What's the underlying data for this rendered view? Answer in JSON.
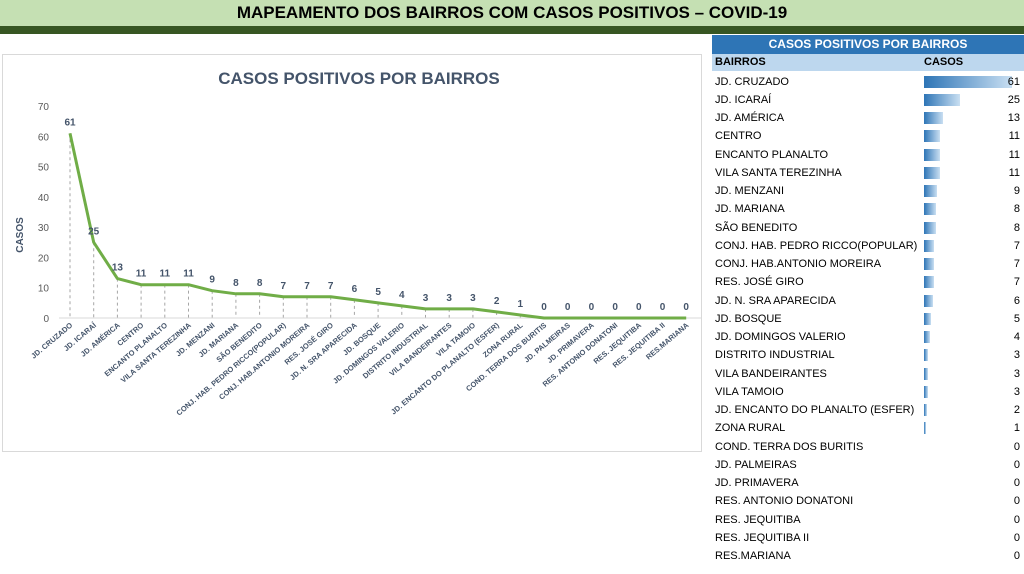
{
  "banner": {
    "title": "MAPEAMENTO DOS BAIRROS COM CASOS POSITIVOS – COVID-19"
  },
  "table": {
    "title": "CASOS POSITIVOS POR BAIRROS",
    "col_name": "BAIRROS",
    "col_value": "CASOS"
  },
  "colors": {
    "line": "#70ad47",
    "axis_text": "#44546a",
    "bar": "#2e75b6"
  },
  "chart_data": {
    "type": "line",
    "title": "CASOS POSITIVOS POR BAIRROS",
    "xlabel": "",
    "ylabel": "CASOS",
    "ylim": [
      0,
      70
    ],
    "yticks": [
      0,
      10,
      20,
      30,
      40,
      50,
      60,
      70
    ],
    "grid": false,
    "legend": "none",
    "data_labels": true,
    "categories": [
      "JD. CRUZADO",
      "JD. ICARAÍ",
      "JD. AMÉRICA",
      "CENTRO",
      "ENCANTO PLANALTO",
      "VILA SANTA TEREZINHA",
      "JD. MENZANI",
      "JD. MARIANA",
      "SÃO BENEDITO",
      "CONJ. HAB. PEDRO RICCO(POPULAR)",
      "CONJ. HAB.ANTONIO MOREIRA",
      "RES. JOSÉ GIRO",
      "JD. N. SRA APARECIDA",
      "JD. BOSQUE",
      "JD. DOMINGOS VALERIO",
      "DISTRITO INDUSTRIAL",
      "VILA BANDEIRANTES",
      "VILA TAMOIO",
      "JD. ENCANTO DO PLANALTO (ESFER)",
      "ZONA RURAL",
      "COND. TERRA DOS BURITIS",
      "JD. PALMEIRAS",
      "JD. PRIMAVERA",
      "RES. ANTONIO DONATONI",
      "RES. JEQUITIBA",
      "RES. JEQUITIBA II",
      "RES.MARIANA"
    ],
    "values": [
      61,
      25,
      13,
      11,
      11,
      11,
      9,
      8,
      8,
      7,
      7,
      7,
      6,
      5,
      4,
      3,
      3,
      3,
      2,
      1,
      0,
      0,
      0,
      0,
      0,
      0,
      0
    ]
  },
  "table_rows": [
    {
      "name": "JD. CRUZADO",
      "value": 61
    },
    {
      "name": "JD. ICARAÍ",
      "value": 25
    },
    {
      "name": "JD. AMÉRICA",
      "value": 13
    },
    {
      "name": "CENTRO",
      "value": 11
    },
    {
      "name": "ENCANTO PLANALTO",
      "value": 11
    },
    {
      "name": "VILA SANTA TEREZINHA",
      "value": 11
    },
    {
      "name": "JD. MENZANI",
      "value": 9
    },
    {
      "name": "JD. MARIANA",
      "value": 8
    },
    {
      "name": "SÃO BENEDITO",
      "value": 8
    },
    {
      "name": "CONJ. HAB. PEDRO RICCO(POPULAR)",
      "value": 7
    },
    {
      "name": "CONJ. HAB.ANTONIO MOREIRA",
      "value": 7
    },
    {
      "name": "RES. JOSÉ GIRO",
      "value": 7
    },
    {
      "name": "JD. N. SRA APARECIDA",
      "value": 6
    },
    {
      "name": "JD. BOSQUE",
      "value": 5
    },
    {
      "name": "JD. DOMINGOS VALERIO",
      "value": 4
    },
    {
      "name": "DISTRITO INDUSTRIAL",
      "value": 3
    },
    {
      "name": "VILA BANDEIRANTES",
      "value": 3
    },
    {
      "name": "VILA TAMOIO",
      "value": 3
    },
    {
      "name": "JD. ENCANTO DO PLANALTO (ESFER)",
      "value": 2
    },
    {
      "name": "ZONA RURAL",
      "value": 1
    },
    {
      "name": "COND. TERRA DOS BURITIS",
      "value": 0
    },
    {
      "name": "JD. PALMEIRAS",
      "value": 0
    },
    {
      "name": "JD. PRIMAVERA",
      "value": 0
    },
    {
      "name": "RES. ANTONIO DONATONI",
      "value": 0
    },
    {
      "name": "RES. JEQUITIBA",
      "value": 0
    },
    {
      "name": "RES. JEQUITIBA II",
      "value": 0
    },
    {
      "name": "RES.MARIANA",
      "value": 0
    }
  ]
}
